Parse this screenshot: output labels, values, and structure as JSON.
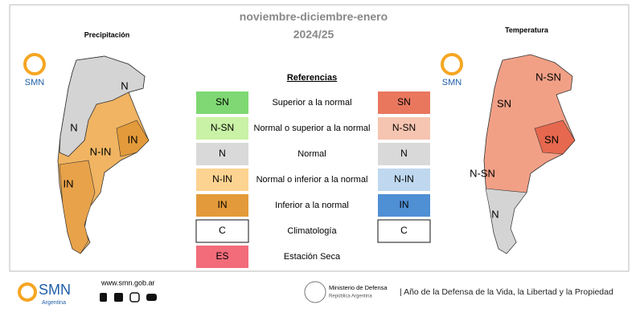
{
  "header": {
    "title": "noviembre-diciembre-enero",
    "subtitle": "2024/25"
  },
  "maps": [
    {
      "title": "Precipitación",
      "logo": "SMN",
      "labels": [
        "N",
        "N",
        "N-IN",
        "IN",
        "IN"
      ]
    },
    {
      "title": "Temperatura",
      "logo": "SMN",
      "labels": [
        "N-SN",
        "SN",
        "SN",
        "N-SN",
        "N"
      ]
    }
  ],
  "legend": {
    "title": "Referencias",
    "rows": [
      {
        "left": {
          "label": "SN",
          "color": "#7fd873"
        },
        "description": "Superior a la normal",
        "right": {
          "label": "SN",
          "color": "#e9775e"
        }
      },
      {
        "left": {
          "label": "N-SN",
          "color": "#c9f2a6"
        },
        "description": "Normal o superior a la normal",
        "right": {
          "label": "N-SN",
          "color": "#f6c5b1"
        }
      },
      {
        "left": {
          "label": "N",
          "color": "#d9d9d9"
        },
        "description": "Normal",
        "right": {
          "label": "N",
          "color": "#d9d9d9"
        }
      },
      {
        "left": {
          "label": "N-IN",
          "color": "#fdd391"
        },
        "description": "Normal o inferior a la normal",
        "right": {
          "label": "N-IN",
          "color": "#bfd8ef"
        }
      },
      {
        "left": {
          "label": "IN",
          "color": "#e39a3a"
        },
        "description": "Inferior a la normal",
        "right": {
          "label": "IN",
          "color": "#4f8fd4"
        }
      },
      {
        "left": {
          "label": "C",
          "color": "#ffffff"
        },
        "description": "Climatología",
        "right": {
          "label": "C",
          "color": "#ffffff"
        }
      },
      {
        "left": {
          "label": "ES",
          "color": "#f26c7a"
        },
        "description": "Estación Seca"
      }
    ]
  },
  "footer": {
    "logo": "SMN",
    "logo_sub": "Argentina",
    "web": "www.smn.gob.ar",
    "ministry": "Ministerio de Defensa",
    "ministry_sub": "República Argentina",
    "slogan": "| Año de la Defensa de la Vida, la Libertad y la Propiedad"
  }
}
